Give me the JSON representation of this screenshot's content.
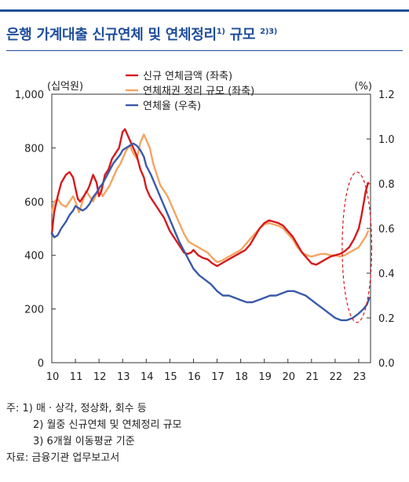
{
  "header": {
    "title": "은행 가계대출 신규연체 및 연체정리",
    "title_sup_1": "1)",
    "title_suffix": " 규모",
    "title_sup_2": "2)3)"
  },
  "notes": {
    "note1_prefix": "주: 1)",
    "note1_text": "매 · 상각, 정상화, 회수 등",
    "note2": "2) 월중 신규연체 및 연체정리 규모",
    "note3": "3) 6개월 이동평균 기준",
    "source": "자료: 금융기관 업무보고서"
  },
  "chart_data": {
    "type": "line",
    "left_axis_unit": "(십억원)",
    "right_axis_unit": "(%)",
    "ylim_left": [
      0,
      1000
    ],
    "ylim_right": [
      0.0,
      1.2
    ],
    "yticks_left": [
      "0",
      "200",
      "400",
      "600",
      "800",
      "1,000"
    ],
    "yticks_right": [
      "0.0",
      "0.2",
      "0.4",
      "0.6",
      "0.8",
      "1.0",
      "1.2"
    ],
    "x_tick_labels": [
      "10",
      "11",
      "12",
      "13",
      "14",
      "15",
      "16",
      "17",
      "18",
      "19",
      "20",
      "21",
      "22",
      "23"
    ],
    "xlim": [
      10,
      23.5
    ],
    "grid": false,
    "legend_position": "top-center",
    "annotation": "dashed red ellipse around 2022-2023",
    "colors": {
      "new": "#d7191c",
      "cleared": "#f4a462",
      "rate": "#3a5aa8",
      "ellipse": "#d7191c"
    },
    "series": [
      {
        "name": "신규 연체금액 (좌축)",
        "axis": "left",
        "x": [
          10.0,
          10.1,
          10.25,
          10.4,
          10.6,
          10.75,
          10.9,
          11.0,
          11.1,
          11.2,
          11.35,
          11.5,
          11.6,
          11.75,
          11.9,
          12.0,
          12.1,
          12.25,
          12.4,
          12.55,
          12.7,
          12.85,
          13.0,
          13.1,
          13.2,
          13.3,
          13.45,
          13.6,
          13.75,
          13.9,
          14.0,
          14.15,
          14.3,
          14.45,
          14.6,
          14.75,
          14.9,
          15.0,
          15.15,
          15.3,
          15.45,
          15.6,
          15.75,
          15.9,
          16.0,
          16.2,
          16.4,
          16.6,
          16.8,
          17.0,
          17.2,
          17.4,
          17.6,
          17.8,
          18.0,
          18.2,
          18.4,
          18.6,
          18.8,
          19.0,
          19.2,
          19.4,
          19.6,
          19.8,
          20.0,
          20.2,
          20.4,
          20.6,
          20.8,
          21.0,
          21.2,
          21.4,
          21.6,
          21.8,
          22.0,
          22.2,
          22.4,
          22.6,
          22.8,
          23.0,
          23.1,
          23.2,
          23.3,
          23.4
        ],
        "values": [
          480,
          560,
          620,
          670,
          700,
          710,
          690,
          650,
          610,
          600,
          620,
          640,
          660,
          700,
          670,
          620,
          640,
          700,
          720,
          760,
          780,
          800,
          860,
          870,
          850,
          830,
          800,
          770,
          720,
          690,
          650,
          620,
          600,
          580,
          560,
          540,
          510,
          490,
          470,
          450,
          430,
          410,
          405,
          410,
          420,
          400,
          390,
          385,
          370,
          360,
          370,
          380,
          390,
          400,
          410,
          420,
          440,
          470,
          500,
          520,
          530,
          525,
          520,
          510,
          490,
          470,
          440,
          410,
          390,
          370,
          365,
          375,
          385,
          395,
          400,
          405,
          415,
          430,
          460,
          500,
          540,
          590,
          640,
          670
        ]
      },
      {
        "name": "연체채권 정리 규모 (좌축)",
        "axis": "left",
        "x": [
          10.0,
          10.1,
          10.25,
          10.4,
          10.6,
          10.75,
          10.9,
          11.0,
          11.15,
          11.3,
          11.45,
          11.6,
          11.75,
          11.9,
          12.0,
          12.15,
          12.3,
          12.45,
          12.6,
          12.75,
          12.9,
          13.0,
          13.15,
          13.3,
          13.45,
          13.6,
          13.75,
          13.9,
          14.0,
          14.15,
          14.3,
          14.45,
          14.6,
          14.75,
          14.9,
          15.0,
          15.2,
          15.4,
          15.6,
          15.8,
          16.0,
          16.2,
          16.4,
          16.6,
          16.8,
          17.0,
          17.2,
          17.4,
          17.6,
          17.8,
          18.0,
          18.2,
          18.4,
          18.6,
          18.8,
          19.0,
          19.2,
          19.4,
          19.6,
          19.8,
          20.0,
          20.2,
          20.4,
          20.6,
          20.8,
          21.0,
          21.2,
          21.4,
          21.6,
          21.8,
          22.0,
          22.2,
          22.4,
          22.6,
          22.8,
          23.0,
          23.15,
          23.3,
          23.4
        ],
        "values": [
          560,
          600,
          610,
          590,
          580,
          600,
          620,
          600,
          560,
          600,
          640,
          620,
          600,
          630,
          650,
          620,
          640,
          660,
          690,
          720,
          740,
          760,
          790,
          810,
          780,
          760,
          820,
          850,
          830,
          800,
          740,
          700,
          660,
          640,
          620,
          600,
          560,
          520,
          480,
          450,
          440,
          430,
          420,
          410,
          390,
          375,
          380,
          390,
          400,
          410,
          420,
          440,
          460,
          480,
          500,
          515,
          520,
          515,
          510,
          500,
          480,
          460,
          430,
          410,
          400,
          395,
          400,
          405,
          405,
          400,
          400,
          395,
          400,
          410,
          420,
          430,
          450,
          470,
          490
        ]
      },
      {
        "name": "연체율 (우축)",
        "axis": "right",
        "x": [
          10.0,
          10.1,
          10.25,
          10.4,
          10.6,
          10.75,
          10.9,
          11.0,
          11.15,
          11.3,
          11.45,
          11.6,
          11.75,
          11.9,
          12.0,
          12.15,
          12.3,
          12.45,
          12.6,
          12.75,
          12.9,
          13.0,
          13.15,
          13.3,
          13.45,
          13.6,
          13.75,
          13.9,
          14.0,
          14.2,
          14.4,
          14.6,
          14.8,
          15.0,
          15.2,
          15.4,
          15.6,
          15.8,
          16.0,
          16.25,
          16.5,
          16.75,
          17.0,
          17.25,
          17.5,
          17.75,
          18.0,
          18.25,
          18.5,
          18.75,
          19.0,
          19.25,
          19.5,
          19.75,
          20.0,
          20.25,
          20.5,
          20.75,
          21.0,
          21.25,
          21.5,
          21.75,
          22.0,
          22.25,
          22.5,
          22.75,
          23.0,
          23.2,
          23.35,
          23.45
        ],
        "values": [
          0.58,
          0.56,
          0.57,
          0.6,
          0.63,
          0.66,
          0.68,
          0.7,
          0.69,
          0.68,
          0.69,
          0.71,
          0.74,
          0.76,
          0.78,
          0.8,
          0.83,
          0.86,
          0.89,
          0.91,
          0.93,
          0.95,
          0.96,
          0.97,
          0.98,
          0.97,
          0.95,
          0.92,
          0.88,
          0.84,
          0.79,
          0.74,
          0.69,
          0.64,
          0.59,
          0.54,
          0.5,
          0.46,
          0.42,
          0.39,
          0.37,
          0.35,
          0.32,
          0.3,
          0.3,
          0.29,
          0.28,
          0.27,
          0.27,
          0.28,
          0.29,
          0.3,
          0.3,
          0.31,
          0.32,
          0.32,
          0.31,
          0.3,
          0.28,
          0.26,
          0.24,
          0.22,
          0.2,
          0.19,
          0.19,
          0.2,
          0.22,
          0.24,
          0.26,
          0.29
        ]
      }
    ]
  }
}
